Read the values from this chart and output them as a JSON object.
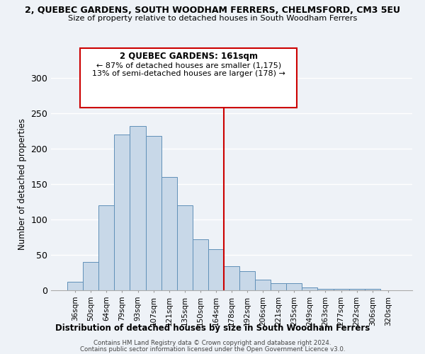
{
  "title": "2, QUEBEC GARDENS, SOUTH WOODHAM FERRERS, CHELMSFORD, CM3 5EU",
  "subtitle": "Size of property relative to detached houses in South Woodham Ferrers",
  "xlabel": "Distribution of detached houses by size in South Woodham Ferrers",
  "ylabel": "Number of detached properties",
  "bar_labels": [
    "36sqm",
    "50sqm",
    "64sqm",
    "79sqm",
    "93sqm",
    "107sqm",
    "121sqm",
    "135sqm",
    "150sqm",
    "164sqm",
    "178sqm",
    "192sqm",
    "206sqm",
    "221sqm",
    "235sqm",
    "249sqm",
    "263sqm",
    "277sqm",
    "292sqm",
    "306sqm",
    "320sqm"
  ],
  "bar_values": [
    12,
    40,
    120,
    220,
    232,
    218,
    160,
    120,
    72,
    58,
    34,
    27,
    15,
    10,
    10,
    4,
    2,
    2,
    2,
    2,
    0
  ],
  "bar_color": "#c8d8e8",
  "bar_edge_color": "#6090b8",
  "vline_x": 9.5,
  "vline_color": "#cc0000",
  "annotation_title": "2 QUEBEC GARDENS: 161sqm",
  "annotation_line1": "← 87% of detached houses are smaller (1,175)",
  "annotation_line2": "13% of semi-detached houses are larger (178) →",
  "annotation_box_color": "#ffffff",
  "annotation_box_edge": "#cc0000",
  "ylim": [
    0,
    300
  ],
  "yticks": [
    0,
    50,
    100,
    150,
    200,
    250,
    300
  ],
  "footer_line1": "Contains HM Land Registry data © Crown copyright and database right 2024.",
  "footer_line2": "Contains public sector information licensed under the Open Government Licence v3.0.",
  "bg_color": "#eef2f7"
}
